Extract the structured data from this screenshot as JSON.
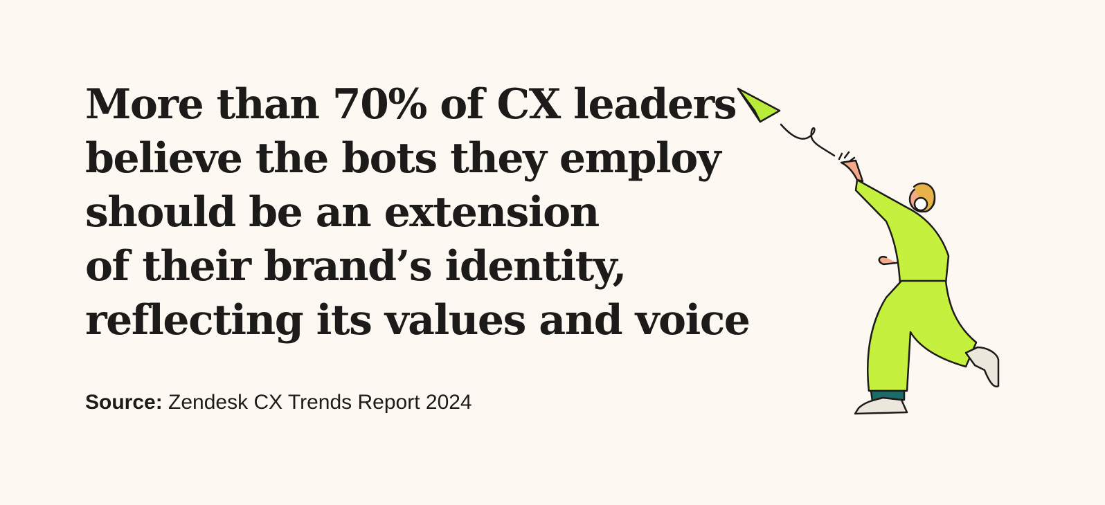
{
  "headline": {
    "lines": [
      "More than 70% of CX leaders",
      "believe the bots they employ",
      "should be an extension",
      "of their brand’s identity,",
      "reflecting its values and voice"
    ]
  },
  "source": {
    "label": "Source:",
    "text": "Zendesk CX Trends Report 2024"
  }
}
